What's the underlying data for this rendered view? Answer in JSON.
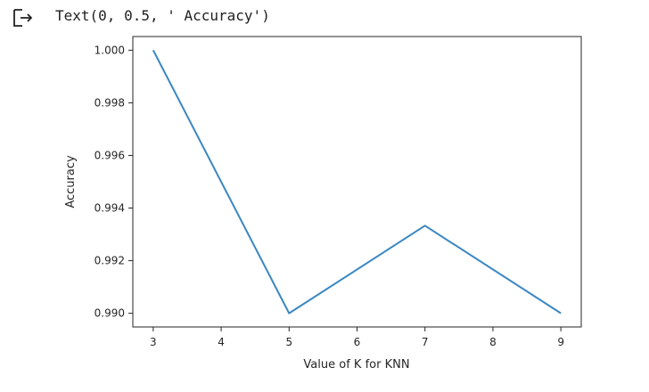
{
  "cell_output": {
    "text": "Text(0, 0.5, ' Accuracy')"
  },
  "chart_data": {
    "type": "line",
    "x": [
      3,
      5,
      7,
      9
    ],
    "series": [
      {
        "values": [
          1.0,
          0.99,
          0.99333,
          0.99
        ],
        "color": "#3a87c2"
      }
    ],
    "xlabel": "Value of K for KNN",
    "ylabel": "Accuracy",
    "xlim": [
      2.7,
      9.3
    ],
    "ylim": [
      0.98948,
      1.00052
    ],
    "xticks": [
      3,
      4,
      5,
      6,
      7,
      8,
      9
    ],
    "xtick_labels": [
      "3",
      "4",
      "5",
      "6",
      "7",
      "8",
      "9"
    ],
    "yticks": [
      0.99,
      0.992,
      0.994,
      0.996,
      0.998,
      1.0
    ],
    "ytick_labels": [
      "0.990",
      "0.992",
      "0.994",
      "0.996",
      "0.998",
      "1.000"
    ],
    "grid": false
  }
}
